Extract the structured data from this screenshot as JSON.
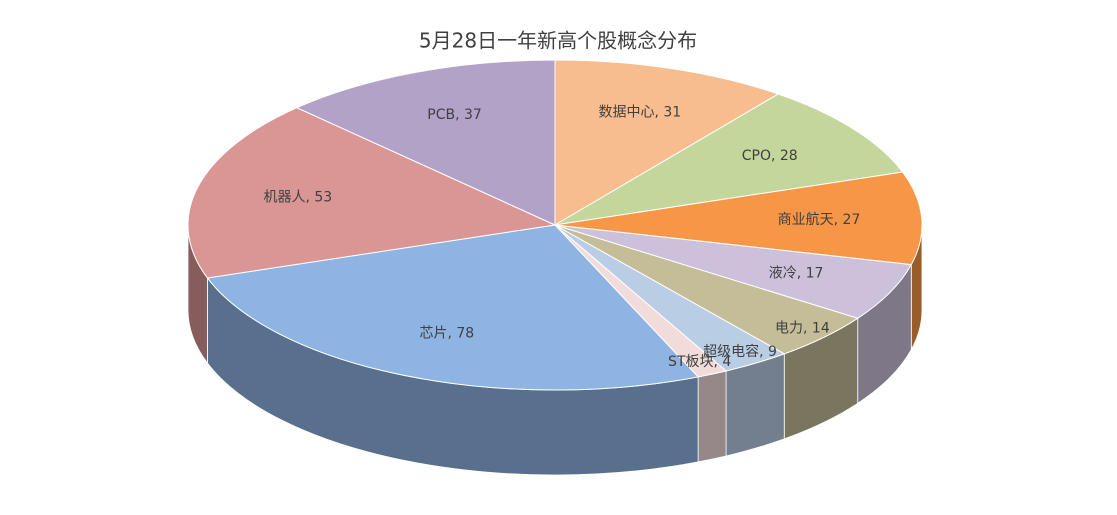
{
  "chart_data": {
    "type": "pie3d",
    "title": "5月28日一年新高个股概念分布",
    "values": [
      31,
      28,
      27,
      17,
      14,
      9,
      4,
      78,
      53,
      37
    ],
    "value_labels": [
      "数据中心, 31",
      "CPO, 28",
      "商业航天, 27",
      "液冷, 17",
      "电力, 14",
      "超级电容, 9",
      "ST板块, 4",
      "芯片, 78",
      "机器人, 53",
      "PCB, 37"
    ],
    "colors": [
      "#f7bd8e",
      "#c3d69b",
      "#f79646",
      "#ccc0da",
      "#c4bd97",
      "#b9cde5",
      "#f2dcdb",
      "#8eb4e3",
      "#d99694",
      "#b3a2c7"
    ]
  }
}
